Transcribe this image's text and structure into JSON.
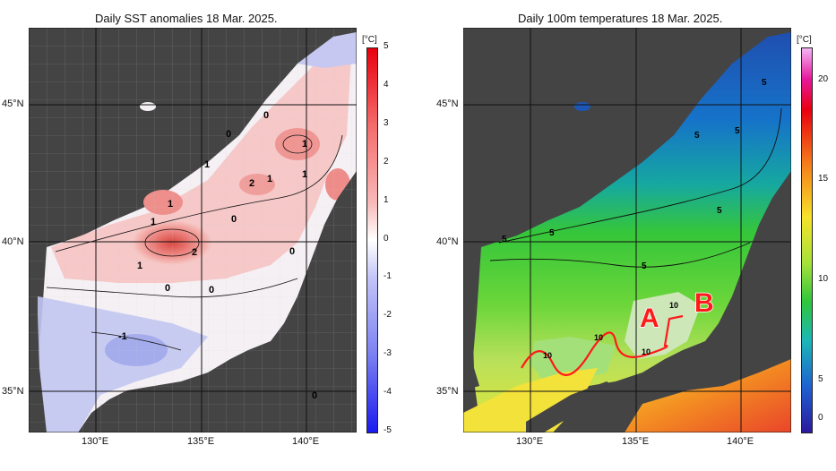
{
  "left_panel": {
    "title": "Daily SST anomalies 18 Mar. 2025.",
    "unit": "[°C]",
    "lat_labels": [
      "45°N",
      "40°N",
      "35°N"
    ],
    "lon_labels": [
      "130°E",
      "135°E",
      "140°E"
    ],
    "colorbar_ticks": [
      "5",
      "4",
      "3",
      "2",
      "1",
      "0",
      "-1",
      "-2",
      "-3",
      "-4",
      "-5"
    ],
    "contour_labels": [
      "0",
      "0",
      "1",
      "1",
      "1",
      "2",
      "1",
      "1",
      "1",
      "0",
      "2",
      "1",
      "0",
      "0",
      "0",
      "-1",
      "0"
    ]
  },
  "right_panel": {
    "title": "Daily 100m temperatures 18 Mar. 2025.",
    "unit": "[°C]",
    "lat_labels": [
      "45°N",
      "40°N",
      "35°N"
    ],
    "lon_labels": [
      "130°E",
      "135°E",
      "140°E"
    ],
    "colorbar_ticks": [
      "20",
      "15",
      "10",
      "5",
      "0"
    ],
    "contour_labels": [
      "5",
      "5",
      "5",
      "5",
      "5",
      "5",
      "5",
      "10",
      "10",
      "10",
      "10"
    ],
    "markers": [
      "A",
      "B"
    ]
  },
  "colors": {
    "land": "#3f3f3f",
    "anomaly_warm": "#f08a8a",
    "anomaly_cool": "#9aa2ee",
    "marker_red": "#ff1a1a"
  }
}
